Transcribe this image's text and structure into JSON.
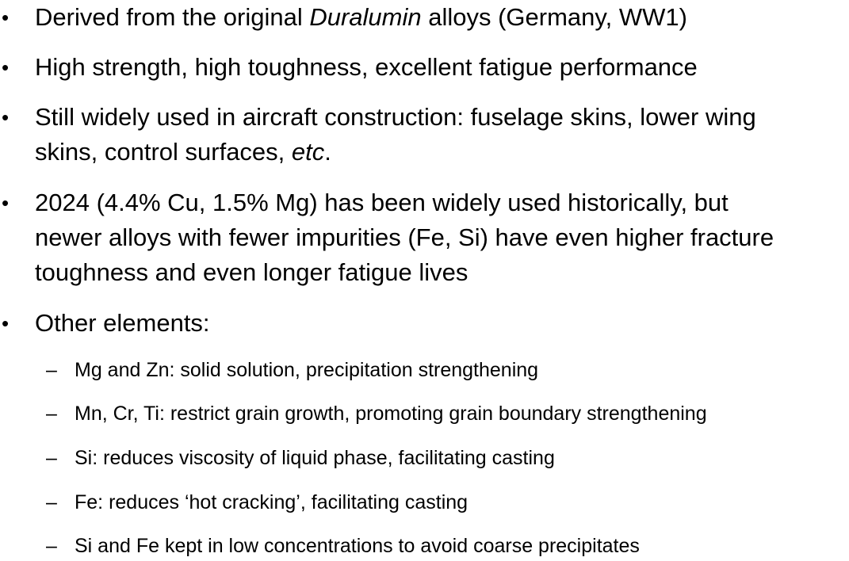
{
  "bullet_marker": "•",
  "sub_marker": "–",
  "bullets": [
    {
      "part1": "Derived from the original ",
      "italic": "Duralumin",
      "part2": " alloys (Germany, WW1)"
    },
    {
      "text": "High strength, high toughness, excellent fatigue performance"
    },
    {
      "line1": "Still widely used in aircraft construction: fuselage skins, lower wing",
      "line2_part1": "skins, control surfaces, ",
      "line2_italic": "etc",
      "line2_part2": "."
    },
    {
      "line1": "2024 (4.4% Cu, 1.5% Mg) has been widely used historically, but",
      "line2": "newer alloys with fewer impurities (Fe, Si) have even higher fracture",
      "line3": "toughness and even longer fatigue lives"
    },
    {
      "text": "Other elements:"
    }
  ],
  "sub_bullets": [
    "Mg and Zn: solid solution, precipitation strengthening",
    "Mn, Cr, Ti: restrict grain growth, promoting grain boundary strengthening",
    "Si: reduces viscosity of liquid phase, facilitating casting",
    "Fe: reduces ‘hot cracking’, facilitating casting",
    "Si and Fe kept in low concentrations to avoid coarse precipitates"
  ]
}
